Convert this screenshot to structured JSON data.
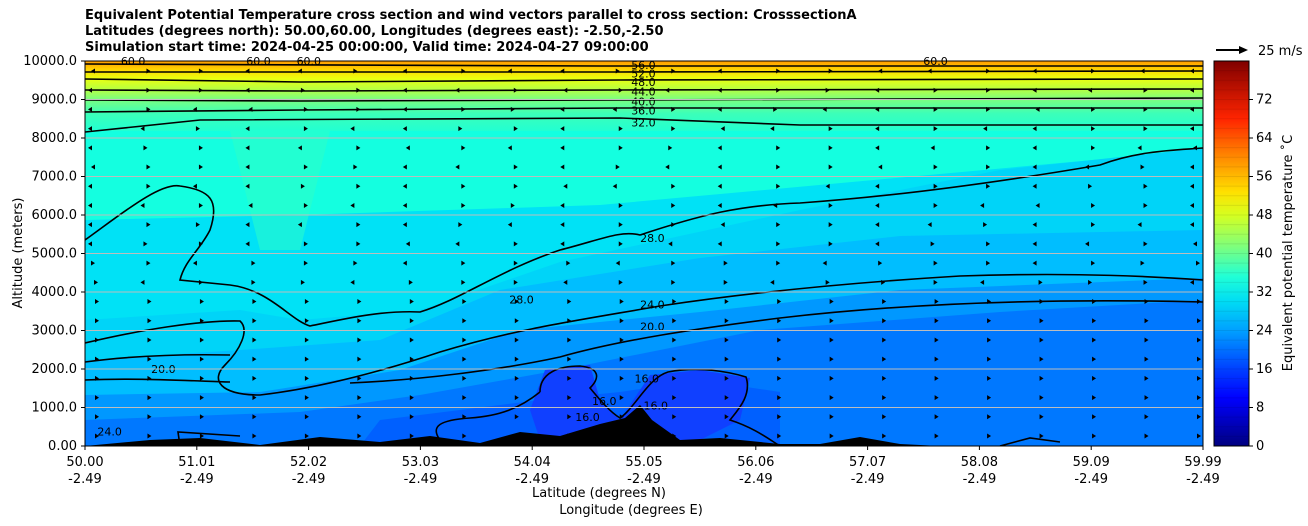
{
  "chart_data": {
    "type": "contourf",
    "title_lines": [
      "Equivalent Potential Temperature cross section and wind vectors parallel to cross section: CrosssectionA",
      "Latitudes (degrees north): 50.00,60.00, Longitudes (degrees east): -2.50,-2.50",
      "Simulation start time: 2024-04-25 00:00:00, Valid time: 2024-04-27 09:00:00"
    ],
    "ylabel": "Altitude (meters)",
    "xlabel_lat": "Latitude (degrees N)",
    "xlabel_lon": "Longitude (degrees E)",
    "ylim": [
      0,
      10000
    ],
    "y_ticks": [
      "0.00",
      "1000.0",
      "2000.0",
      "3000.0",
      "4000.0",
      "5000.0",
      "6000.0",
      "7000.0",
      "8000.0",
      "9000.0",
      "10000.0"
    ],
    "x_ticks_lat": [
      "50.00",
      "51.01",
      "52.02",
      "53.03",
      "54.04",
      "55.05",
      "56.06",
      "57.07",
      "58.08",
      "59.09",
      "59.99"
    ],
    "x_ticks_lon": [
      "-2.49",
      "-2.49",
      "-2.49",
      "-2.49",
      "-2.49",
      "-2.49",
      "-2.49",
      "-2.49",
      "-2.49",
      "-2.49",
      "-2.49"
    ],
    "colorbar": {
      "label": "Equivalent potential temperature ˚C",
      "range": [
        0,
        80
      ],
      "ticks": [
        "0",
        "8",
        "16",
        "24",
        "32",
        "40",
        "48",
        "56",
        "64",
        "72"
      ]
    },
    "wind_key_label": "25 m/s",
    "contour_labels": [
      {
        "text": "56.0",
        "x": 54.99,
        "y": 9850
      },
      {
        "text": "52.0",
        "x": 54.99,
        "y": 9620
      },
      {
        "text": "48.0",
        "x": 54.99,
        "y": 9400
      },
      {
        "text": "44.0",
        "x": 54.99,
        "y": 9160
      },
      {
        "text": "40.0",
        "x": 54.99,
        "y": 8900
      },
      {
        "text": "36.0",
        "x": 54.99,
        "y": 8660
      },
      {
        "text": "32.0",
        "x": 54.99,
        "y": 8350
      },
      {
        "text": "28.0",
        "x": 55.07,
        "y": 5350
      },
      {
        "text": "28.0",
        "x": 53.9,
        "y": 3750
      },
      {
        "text": "24.0",
        "x": 55.07,
        "y": 3620
      },
      {
        "text": "20.0",
        "x": 55.07,
        "y": 3050
      },
      {
        "text": "20.0",
        "x": 50.7,
        "y": 1950
      },
      {
        "text": "16.0",
        "x": 55.02,
        "y": 1700
      },
      {
        "text": "16.0",
        "x": 54.64,
        "y": 1120
      },
      {
        "text": "16.0",
        "x": 55.1,
        "y": 1000
      },
      {
        "text": "16.0",
        "x": 54.49,
        "y": 700
      },
      {
        "text": "24.0",
        "x": 50.22,
        "y": 330
      },
      {
        "text": "60.0",
        "x": 50.43,
        "y": 9950
      },
      {
        "text": "60.0",
        "x": 51.55,
        "y": 9950
      },
      {
        "text": "60.0",
        "x": 52.0,
        "y": 9950
      },
      {
        "text": "60.0",
        "x": 57.6,
        "y": 9950
      }
    ]
  }
}
